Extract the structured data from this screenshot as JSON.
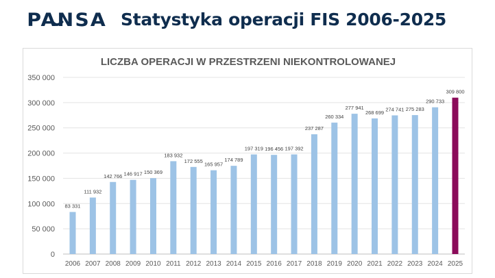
{
  "header": {
    "logo_text": "PANSA",
    "title": "Statystyka operacji FIS 2006-2025"
  },
  "colors": {
    "brand": "#0f2d4e",
    "bar": "#9dc3e6",
    "highlight": "#8b0b5a"
  },
  "chart_data": {
    "type": "bar",
    "title": "LICZBA OPERACJI W PRZESTRZENI NIEKONTROLOWANEJ",
    "xlabel": "",
    "ylabel": "",
    "ylim": [
      0,
      350000
    ],
    "yticks": [
      0,
      50000,
      100000,
      150000,
      200000,
      250000,
      300000,
      350000
    ],
    "ytick_labels": [
      "0",
      "50 000",
      "100 000",
      "150 000",
      "200 000",
      "250 000",
      "300 000",
      "350 000"
    ],
    "grid": true,
    "categories": [
      "2006",
      "2007",
      "2008",
      "2009",
      "2010",
      "2011",
      "2012",
      "2013",
      "2014",
      "2015",
      "2016",
      "2017",
      "2018",
      "2019",
      "2020",
      "2021",
      "2022",
      "2023",
      "2024",
      "2025"
    ],
    "values": [
      83331,
      111932,
      142766,
      146917,
      150369,
      183932,
      172555,
      165957,
      174789,
      197319,
      196456,
      197392,
      237287,
      260334,
      277941,
      268699,
      274741,
      275283,
      290733,
      309800
    ],
    "data_labels": [
      "83 331",
      "111 932",
      "142 766",
      "146 917",
      "150 369",
      "183 932",
      "172 555",
      "165 957",
      "174 789",
      "197 319",
      "196 456",
      "197 392",
      "237 287",
      "260 334",
      "277 941",
      "268 699",
      "274 741",
      "275 283",
      "290 733",
      "309 800"
    ],
    "highlighted_category": "2025"
  }
}
